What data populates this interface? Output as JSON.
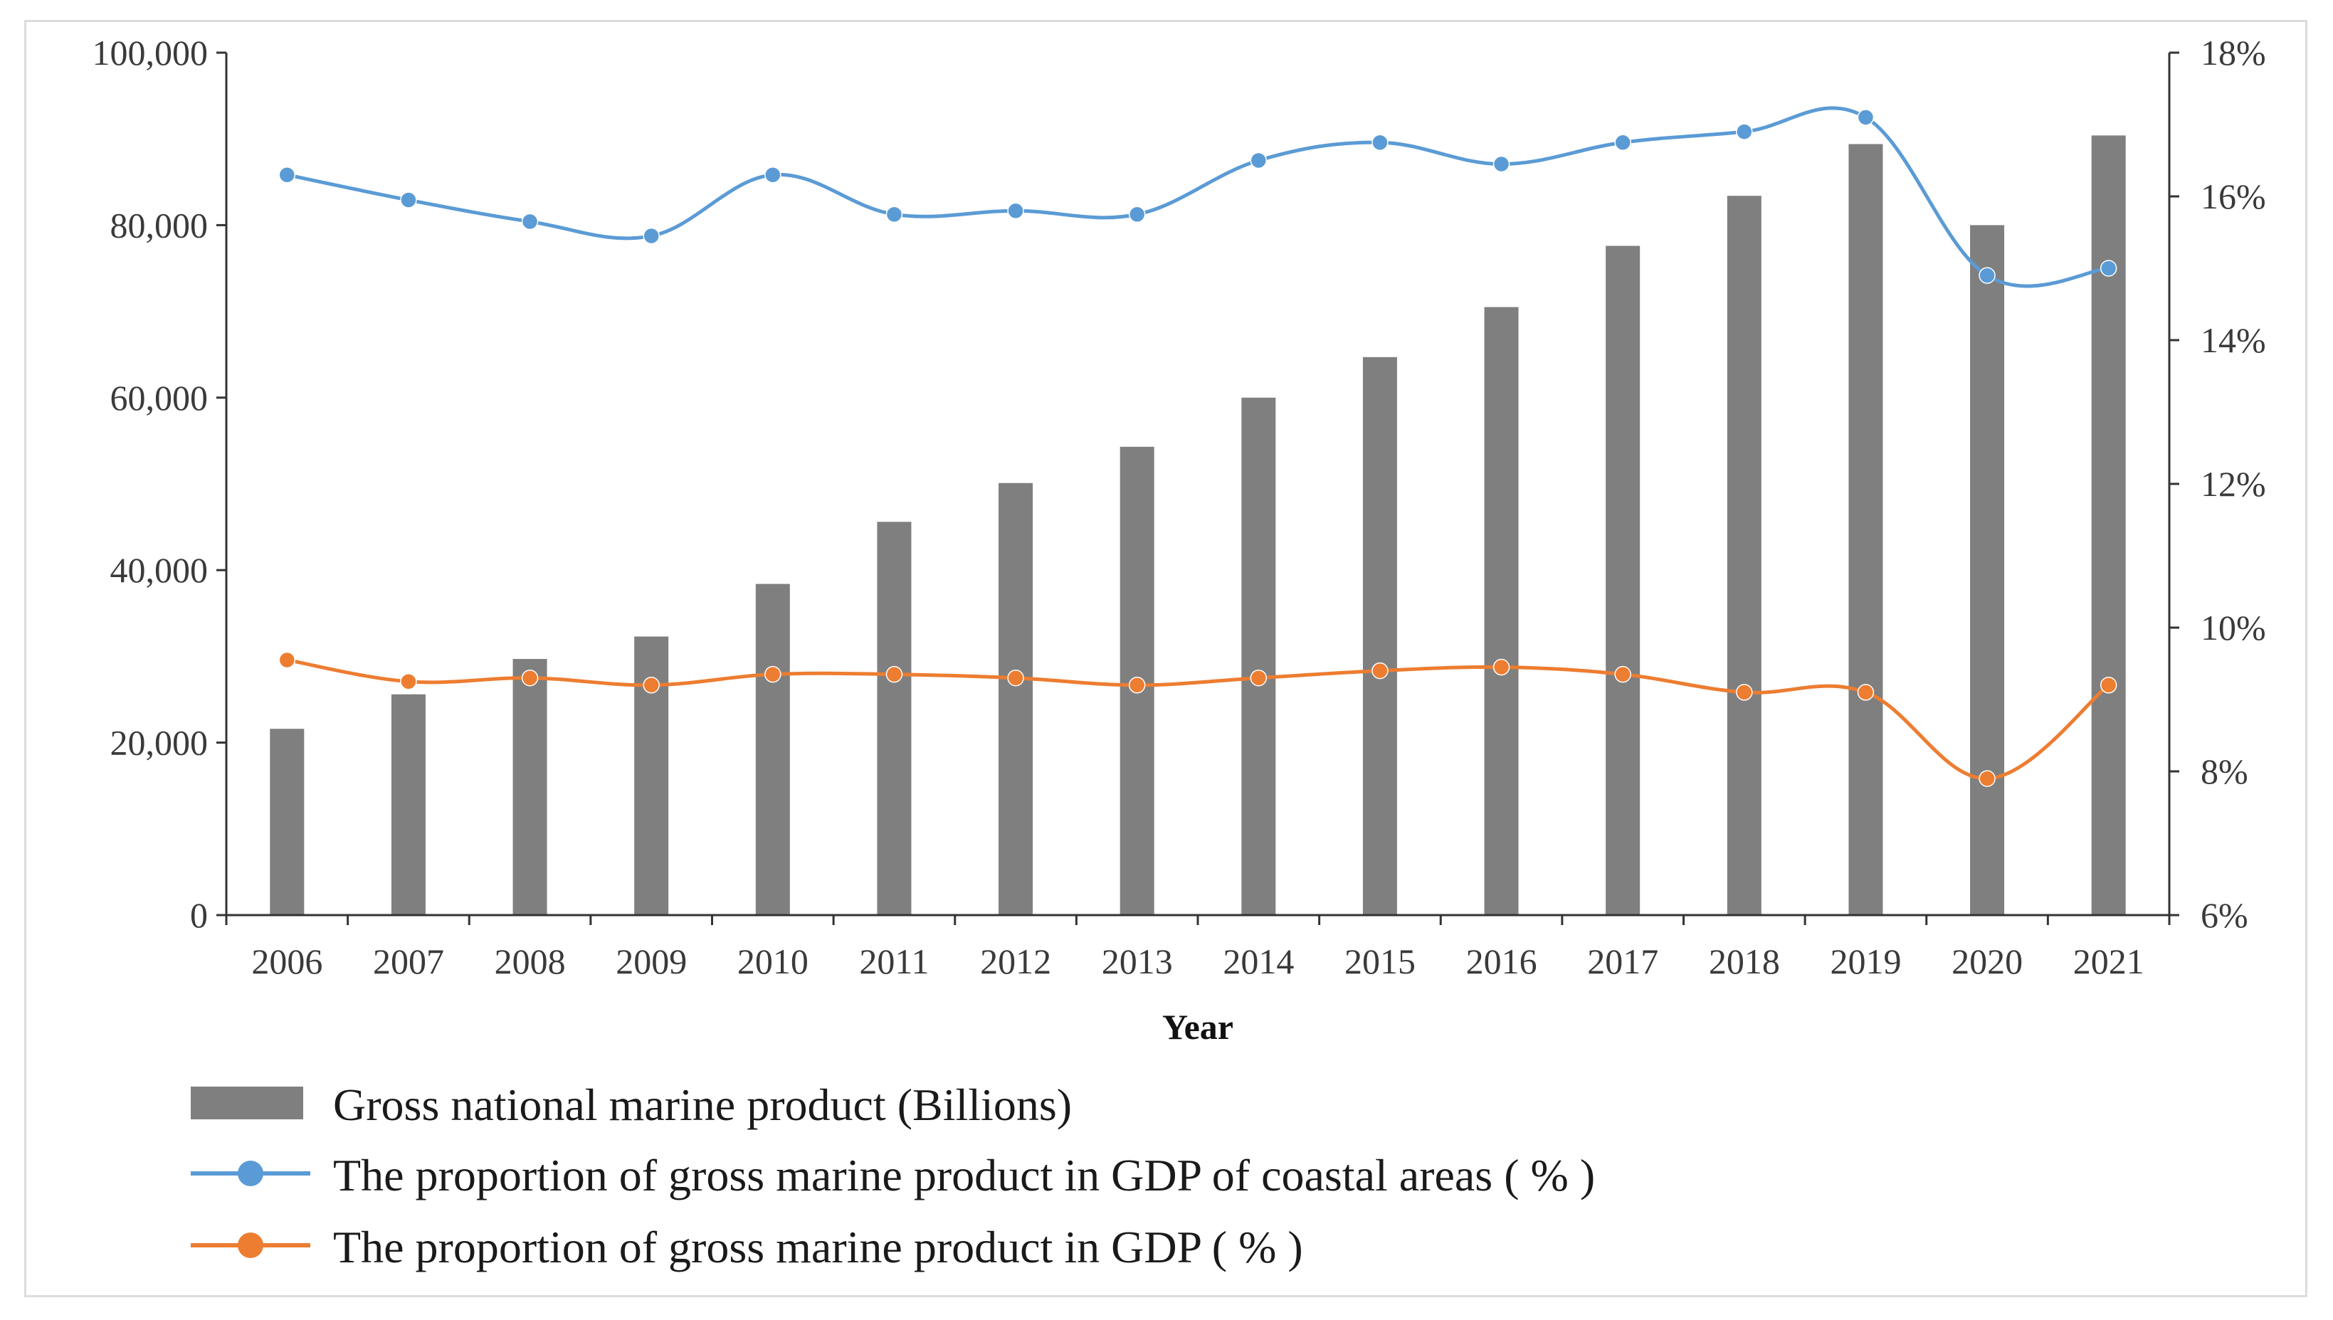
{
  "chart_data": {
    "type": "bar",
    "title": "",
    "xlabel": "Year",
    "categories": [
      "2006",
      "2007",
      "2008",
      "2009",
      "2010",
      "2011",
      "2012",
      "2013",
      "2014",
      "2015",
      "2016",
      "2017",
      "2018",
      "2019",
      "2020",
      "2021"
    ],
    "left_axis": {
      "ylim": [
        0,
        100000
      ],
      "ticks": [
        0,
        20000,
        40000,
        60000,
        80000,
        100000
      ],
      "tick_labels": [
        "0",
        "20,000",
        "40,000",
        "60,000",
        "80,000",
        "100,000"
      ]
    },
    "right_axis": {
      "ylim": [
        6,
        18
      ],
      "ticks": [
        6,
        8,
        10,
        12,
        14,
        16,
        18
      ],
      "tick_labels": [
        "6%",
        "8%",
        "10%",
        "12%",
        "14%",
        "16%",
        "18%"
      ]
    },
    "series": [
      {
        "name": "Gross national marine product (Billions)",
        "kind": "bar",
        "axis": "left",
        "color": "#7f7f7f",
        "values": [
          21600,
          25600,
          29700,
          32300,
          38400,
          45600,
          50100,
          54300,
          60000,
          64700,
          70500,
          77600,
          83400,
          89400,
          80000,
          90400
        ]
      },
      {
        "name": "The proportion of gross marine product in GDP of coastal areas ( % )",
        "kind": "line",
        "axis": "right",
        "color": "#5b9bd5",
        "values": [
          16.3,
          15.95,
          15.65,
          15.45,
          16.3,
          15.75,
          15.8,
          15.75,
          16.5,
          16.75,
          16.45,
          16.75,
          16.9,
          17.1,
          14.9,
          15.0
        ]
      },
      {
        "name": "The proportion of gross marine product in GDP ( % )",
        "kind": "line",
        "axis": "right",
        "color": "#ed7d31",
        "values": [
          9.55,
          9.25,
          9.3,
          9.2,
          9.35,
          9.35,
          9.3,
          9.2,
          9.3,
          9.4,
          9.45,
          9.35,
          9.1,
          9.1,
          7.9,
          9.2
        ]
      }
    ],
    "legend_position": "bottom-left"
  }
}
